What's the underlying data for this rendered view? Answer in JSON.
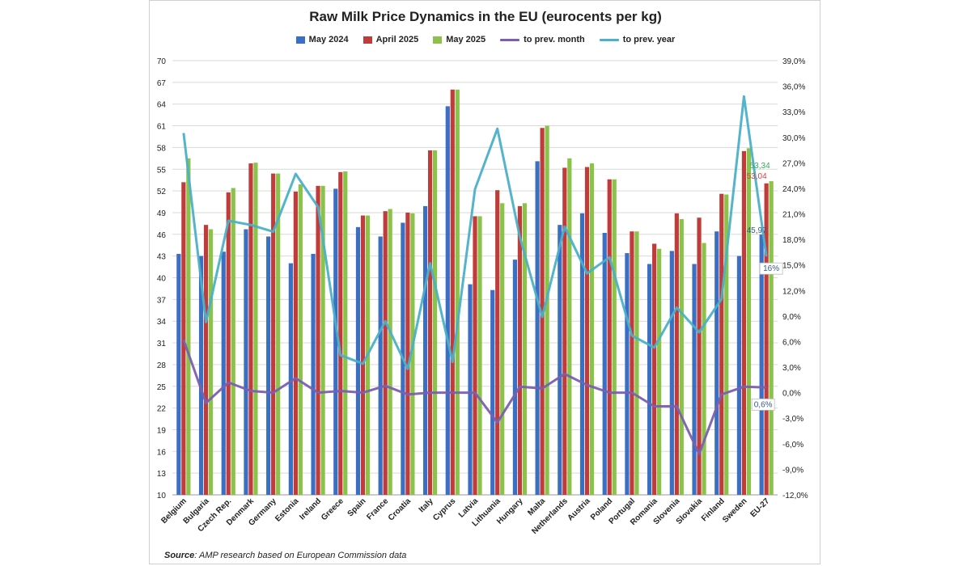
{
  "chart_data": {
    "type": "bar",
    "title": "Raw Milk Price Dynamics in the EU (eurocents per kg)",
    "categories": [
      "Belgium",
      "Bulgaria",
      "Czech Rep.",
      "Denmark",
      "Germany",
      "Estonia",
      "Ireland",
      "Greece",
      "Spain",
      "France",
      "Croatia",
      "Italy",
      "Cyprus",
      "Latvia",
      "Lithuania",
      "Hungary",
      "Malta",
      "Netherlands",
      "Austria",
      "Poland",
      "Portugal",
      "Romania",
      "Slovenia",
      "Slovakia",
      "Finland",
      "Sweden",
      "EU-27"
    ],
    "series": [
      {
        "name": "May 2024",
        "kind": "bar",
        "axis": "left",
        "color": "#3a6fc4",
        "values": [
          43.3,
          43.0,
          43.6,
          46.7,
          45.7,
          42.0,
          43.3,
          52.3,
          47.0,
          45.7,
          47.6,
          49.9,
          63.7,
          39.1,
          38.3,
          42.5,
          56.1,
          47.3,
          48.9,
          46.2,
          43.4,
          41.9,
          43.7,
          41.9,
          46.4,
          43.0,
          45.97
        ]
      },
      {
        "name": "April 2025",
        "kind": "bar",
        "axis": "left",
        "color": "#c23b3b",
        "values": [
          53.2,
          47.3,
          51.8,
          55.8,
          54.4,
          51.9,
          52.7,
          54.6,
          48.6,
          49.2,
          49.0,
          57.6,
          66.0,
          48.5,
          52.1,
          49.9,
          60.7,
          55.2,
          55.3,
          53.6,
          46.4,
          44.7,
          48.9,
          48.3,
          51.6,
          57.5,
          53.04
        ]
      },
      {
        "name": "May 2025",
        "kind": "bar",
        "axis": "left",
        "color": "#8bc34a",
        "values": [
          56.5,
          46.7,
          52.4,
          55.9,
          54.4,
          52.9,
          52.7,
          54.7,
          48.6,
          49.5,
          48.9,
          57.6,
          66.0,
          48.5,
          50.3,
          50.3,
          61.0,
          56.5,
          55.8,
          53.6,
          46.4,
          44.0,
          48.1,
          44.8,
          51.5,
          57.9,
          53.34
        ]
      },
      {
        "name": "to prev. month",
        "kind": "line",
        "axis": "right",
        "color": "#7a5fb0",
        "values": [
          6.2,
          -1.2,
          1.2,
          0.2,
          0.0,
          1.7,
          0.0,
          0.2,
          0.0,
          0.8,
          -0.2,
          0.0,
          0.0,
          0.0,
          -3.5,
          0.7,
          0.5,
          2.2,
          0.9,
          0.0,
          0.0,
          -1.6,
          -1.6,
          -7.2,
          -0.2,
          0.7,
          0.6
        ]
      },
      {
        "name": "to prev. year",
        "kind": "line",
        "axis": "right",
        "color": "#4bb0c8",
        "values": [
          30.5,
          8.3,
          20.2,
          19.7,
          18.9,
          25.7,
          21.8,
          4.4,
          3.4,
          8.4,
          2.8,
          15.2,
          3.6,
          23.9,
          31.0,
          18.3,
          8.9,
          19.5,
          14.0,
          15.9,
          6.7,
          5.3,
          10.0,
          7.1,
          11.0,
          34.8,
          16.0
        ]
      }
    ],
    "ylim": [
      10,
      70
    ],
    "yticks": [
      10,
      13,
      16,
      19,
      22,
      25,
      28,
      31,
      34,
      37,
      40,
      43,
      46,
      49,
      52,
      55,
      58,
      61,
      64,
      67,
      70
    ],
    "y2lim": [
      -12,
      39
    ],
    "y2ticks": [
      "-12,0%",
      "-9,0%",
      "-6,0%",
      "-3,0%",
      "0,0%",
      "3,0%",
      "6,0%",
      "9,0%",
      "12,0%",
      "15,0%",
      "18,0%",
      "21,0%",
      "24,0%",
      "27,0%",
      "30,0%",
      "33,0%",
      "36,0%",
      "39,0%"
    ],
    "grid": true,
    "legend": "top",
    "annotations": [
      {
        "text": "53,34",
        "series": "May 2025",
        "category": "EU-27",
        "color": "#3aa860"
      },
      {
        "text": "53,04",
        "series": "April 2025",
        "category": "EU-27",
        "color": "#d94040"
      },
      {
        "text": "45,97",
        "series": "May 2024",
        "category": "EU-27",
        "color": "#345a8a"
      },
      {
        "text": "16%",
        "series": "to prev. year",
        "category": "EU-27",
        "color": "#345a8a",
        "boxed": true
      },
      {
        "text": "0,6%",
        "series": "to prev. month",
        "category": "EU-27",
        "color": "#345a8a",
        "boxed": true
      }
    ]
  },
  "source": {
    "label": "Source",
    "text": ": AMP research based on European Commission data"
  }
}
